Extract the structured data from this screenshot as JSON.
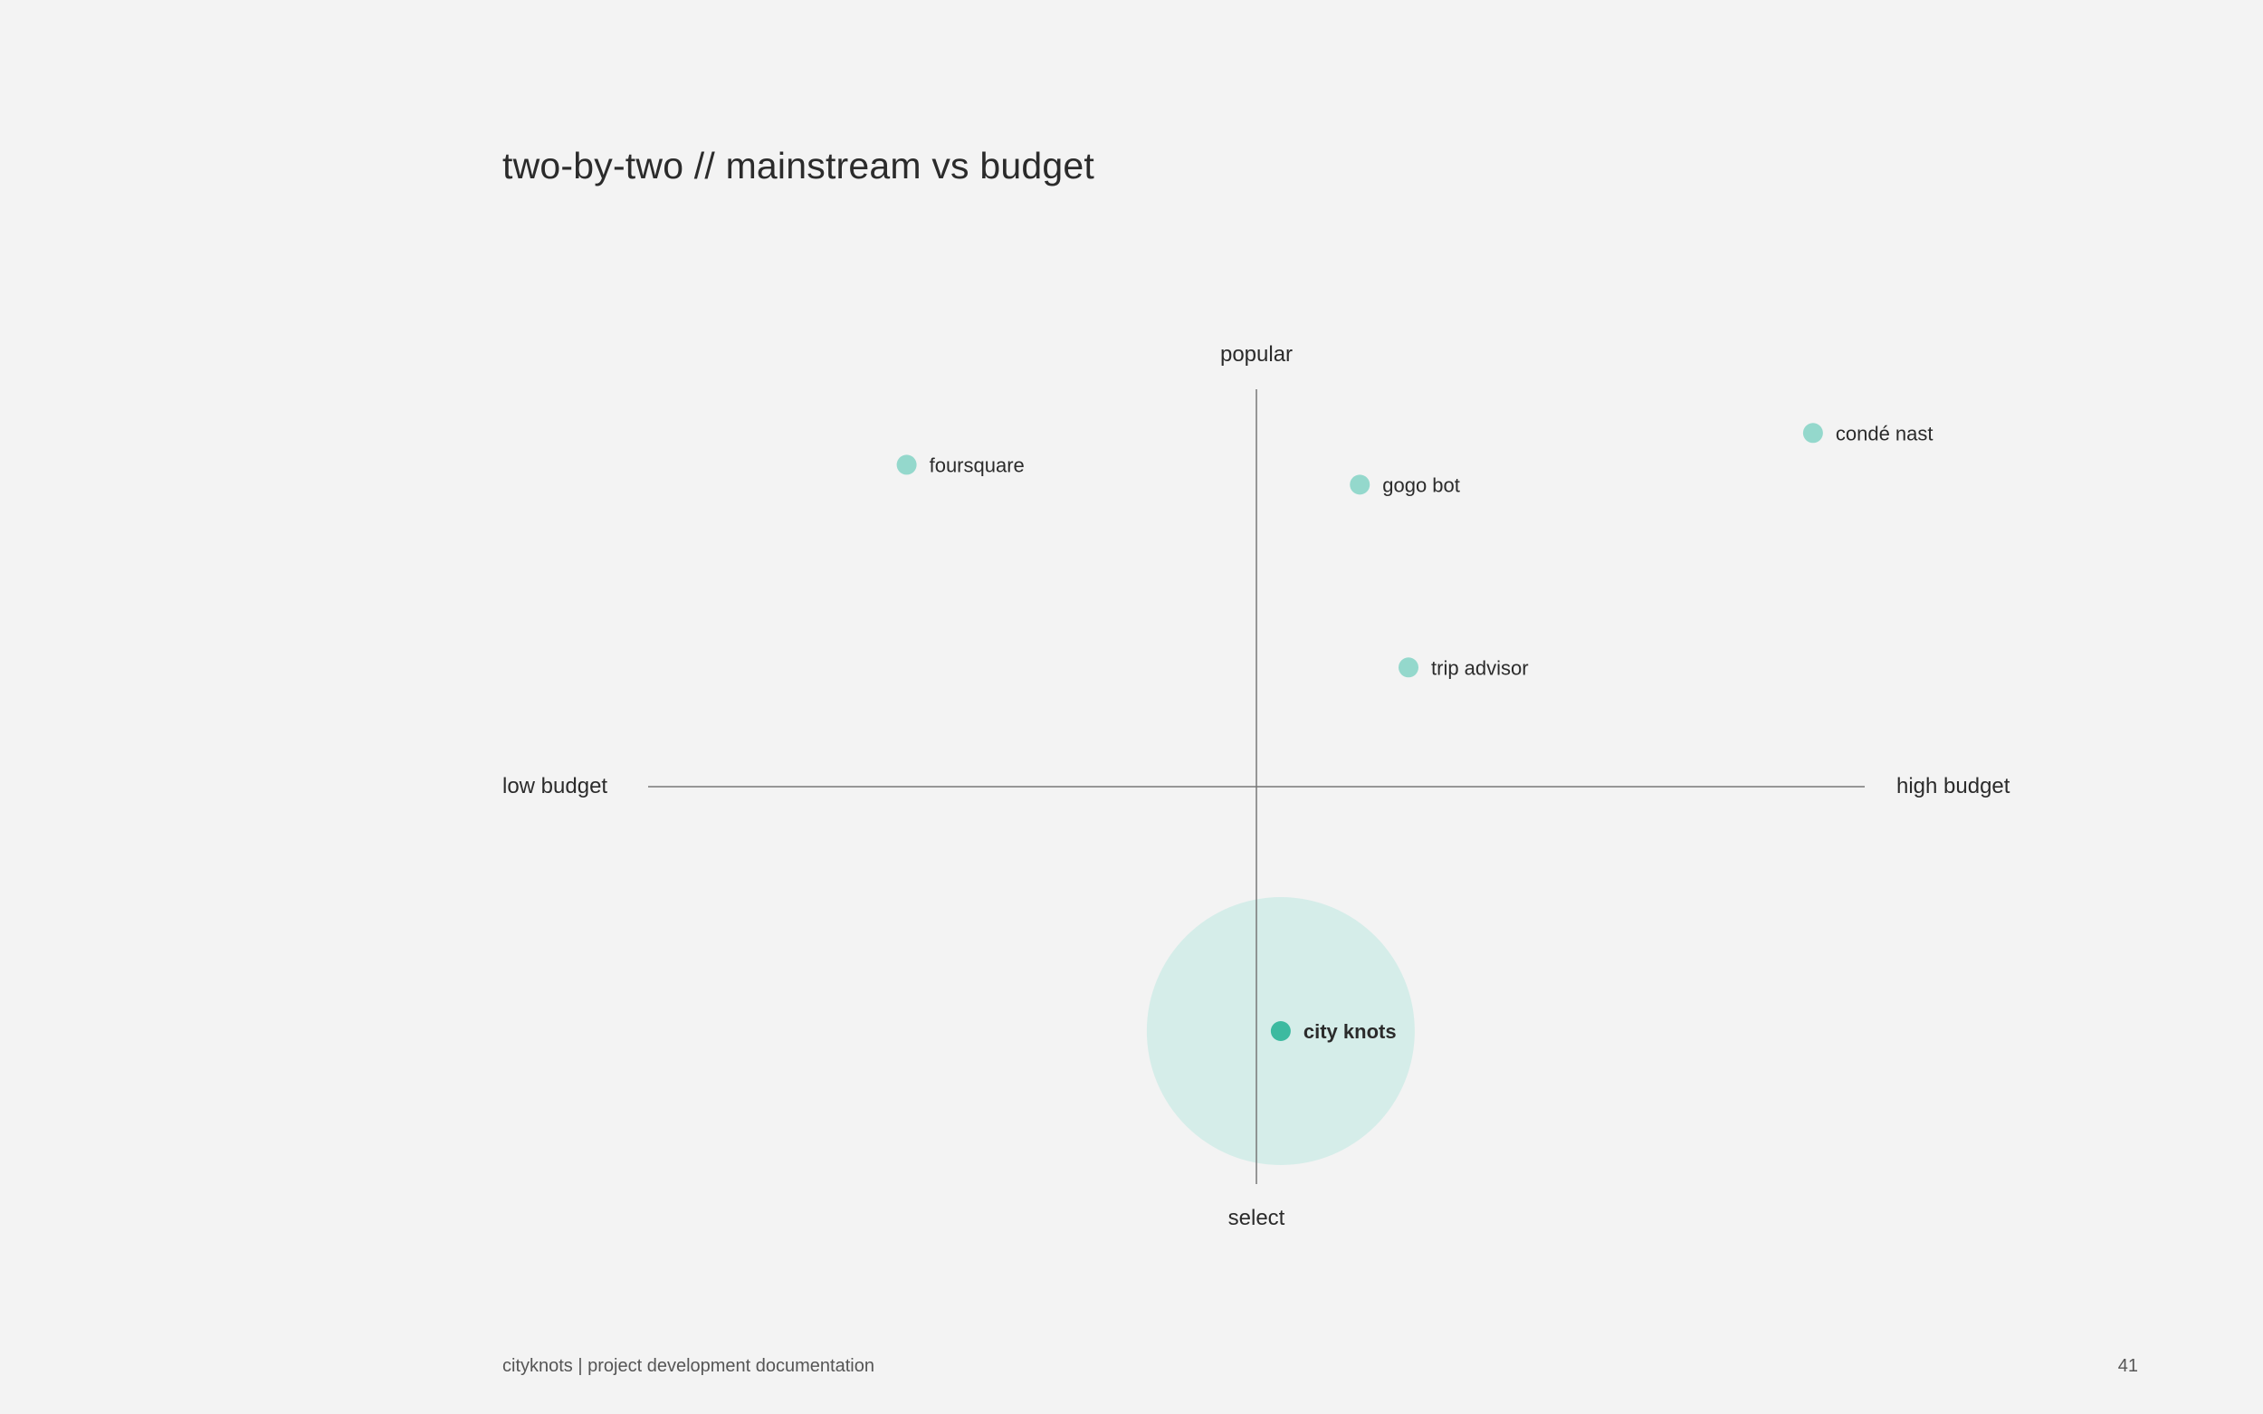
{
  "title": "two-by-two // mainstream vs budget",
  "axes": {
    "top": "popular",
    "bottom": "select",
    "left": "low budget",
    "right": "high budget"
  },
  "colors": {
    "point": "#94d8cc",
    "highlight_point": "#3dbaa0",
    "highlight_halo": "#d5ede9",
    "axis_line": "#777777",
    "background": "#f3f3f3"
  },
  "chart_data": {
    "type": "scatter",
    "title": "two-by-two // mainstream vs budget",
    "xlabel": "",
    "ylabel": "",
    "xlim": [
      -1,
      1
    ],
    "ylim": [
      -1,
      1
    ],
    "grid": false,
    "points": [
      {
        "label": "foursquare",
        "x": -0.575,
        "y": 0.81,
        "highlight": false
      },
      {
        "label": "gogo bot",
        "x": 0.17,
        "y": 0.76,
        "highlight": false
      },
      {
        "label": "condé nast",
        "x": 0.915,
        "y": 0.89,
        "highlight": false
      },
      {
        "label": "trip advisor",
        "x": 0.25,
        "y": 0.3,
        "highlight": false
      },
      {
        "label": "city knots",
        "x": 0.04,
        "y": -0.615,
        "highlight": true
      }
    ]
  },
  "footer": {
    "doc_title": "cityknots | project development documentation",
    "page_number": "41"
  }
}
